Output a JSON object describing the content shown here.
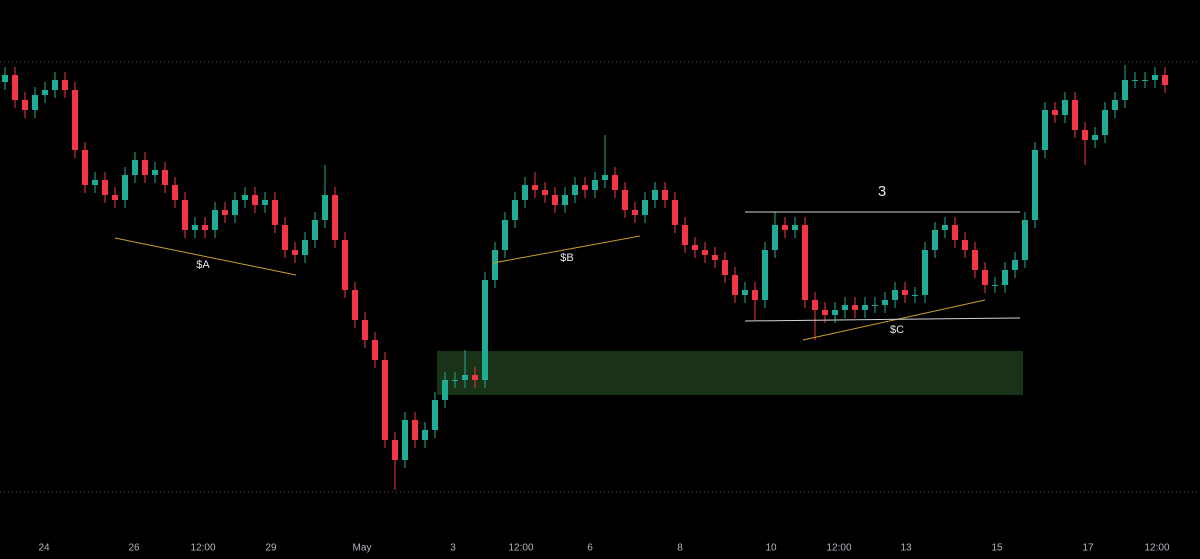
{
  "chart_data": {
    "type": "candlestick",
    "up_color": "#22ab94",
    "down_color": "#f23645",
    "x": [
      0,
      1,
      2,
      3,
      4,
      5,
      6,
      7,
      8,
      9,
      10,
      11,
      12,
      13,
      14,
      15,
      16,
      17,
      18,
      19,
      20,
      21,
      22,
      23,
      24,
      25,
      26,
      27,
      28,
      29,
      30,
      31,
      32,
      33,
      34,
      35,
      36,
      37,
      38,
      39,
      40,
      41,
      42,
      43,
      44,
      45,
      46,
      47,
      48,
      49,
      50,
      51,
      52,
      53,
      54,
      55,
      56,
      57,
      58,
      59,
      60,
      61,
      62,
      63,
      64,
      65,
      66,
      67,
      68,
      69,
      70,
      71,
      72,
      73,
      74,
      75,
      76,
      77,
      78,
      79,
      80,
      81,
      82,
      83,
      84,
      85,
      86,
      87,
      88,
      89,
      90,
      91,
      92,
      93,
      94,
      95,
      96,
      97,
      98,
      99,
      100,
      101,
      102,
      103,
      104,
      105,
      106,
      107,
      108,
      109,
      110,
      111,
      112,
      113,
      114,
      115,
      116
    ],
    "open": [
      410,
      417,
      392,
      382,
      397,
      402,
      412,
      402,
      342,
      307,
      312,
      297,
      292,
      317,
      332,
      317,
      322,
      307,
      292,
      262,
      267,
      262,
      282,
      277,
      292,
      297,
      287,
      292,
      267,
      242,
      237,
      252,
      272,
      297,
      252,
      202,
      172,
      152,
      132,
      52,
      32,
      72,
      52,
      62,
      92,
      112,
      112,
      117,
      112,
      212,
      242,
      272,
      292,
      307,
      302,
      297,
      287,
      297,
      307,
      302,
      312,
      317,
      302,
      282,
      277,
      292,
      302,
      292,
      267,
      247,
      242,
      237,
      232,
      217,
      197,
      202,
      192,
      242,
      267,
      262,
      267,
      192,
      182,
      177,
      182,
      187,
      182,
      187,
      187,
      192,
      202,
      197,
      197,
      242,
      262,
      267,
      252,
      242,
      222,
      207,
      207,
      222,
      232,
      272,
      342,
      382,
      377,
      392,
      362,
      352,
      357,
      382,
      392,
      412,
      412,
      412,
      417
    ],
    "high": [
      425,
      425,
      400,
      405,
      410,
      420,
      420,
      410,
      350,
      320,
      320,
      305,
      325,
      340,
      340,
      330,
      330,
      315,
      300,
      275,
      275,
      290,
      290,
      300,
      305,
      305,
      300,
      300,
      275,
      250,
      260,
      280,
      327,
      305,
      260,
      210,
      180,
      160,
      140,
      60,
      80,
      80,
      70,
      100,
      120,
      120,
      142,
      125,
      220,
      250,
      280,
      300,
      315,
      320,
      310,
      305,
      305,
      315,
      315,
      320,
      357,
      325,
      310,
      290,
      300,
      310,
      310,
      300,
      275,
      255,
      250,
      245,
      240,
      225,
      210,
      210,
      250,
      280,
      275,
      275,
      275,
      200,
      190,
      190,
      195,
      195,
      195,
      195,
      200,
      210,
      210,
      205,
      250,
      270,
      275,
      275,
      260,
      250,
      230,
      215,
      230,
      240,
      280,
      350,
      390,
      390,
      400,
      400,
      370,
      365,
      390,
      400,
      427,
      420,
      420,
      425,
      425
    ],
    "low": [
      402,
      384,
      374,
      374,
      389,
      394,
      394,
      334,
      299,
      299,
      289,
      284,
      284,
      309,
      309,
      309,
      299,
      284,
      254,
      254,
      254,
      254,
      269,
      269,
      284,
      279,
      279,
      259,
      234,
      229,
      229,
      244,
      264,
      244,
      194,
      164,
      144,
      124,
      44,
      2,
      24,
      44,
      44,
      54,
      84,
      104,
      104,
      104,
      104,
      204,
      234,
      264,
      284,
      294,
      289,
      279,
      279,
      289,
      294,
      294,
      304,
      294,
      274,
      269,
      269,
      284,
      284,
      259,
      239,
      234,
      229,
      224,
      209,
      189,
      189,
      172,
      184,
      234,
      254,
      254,
      184,
      152,
      169,
      169,
      174,
      174,
      174,
      179,
      179,
      184,
      189,
      189,
      189,
      234,
      254,
      244,
      234,
      214,
      199,
      199,
      199,
      214,
      224,
      264,
      334,
      369,
      369,
      354,
      327,
      344,
      349,
      374,
      384,
      404,
      404,
      404,
      399
    ],
    "close": [
      417,
      392,
      382,
      397,
      402,
      412,
      402,
      342,
      307,
      312,
      297,
      292,
      317,
      332,
      317,
      322,
      307,
      292,
      262,
      267,
      262,
      282,
      277,
      292,
      297,
      287,
      292,
      267,
      242,
      237,
      252,
      272,
      297,
      252,
      202,
      172,
      152,
      132,
      52,
      32,
      72,
      52,
      62,
      92,
      112,
      112,
      117,
      112,
      212,
      242,
      272,
      292,
      307,
      302,
      297,
      287,
      297,
      307,
      302,
      312,
      317,
      302,
      282,
      277,
      292,
      302,
      292,
      267,
      247,
      242,
      237,
      232,
      217,
      197,
      202,
      192,
      242,
      267,
      262,
      267,
      192,
      182,
      177,
      182,
      187,
      182,
      187,
      187,
      192,
      202,
      197,
      197,
      242,
      262,
      267,
      252,
      242,
      222,
      207,
      207,
      222,
      232,
      272,
      342,
      382,
      377,
      392,
      362,
      352,
      357,
      382,
      392,
      412,
      412,
      412,
      417,
      407
    ],
    "xlim": [
      -0.5,
      116.5
    ],
    "ylim": [
      0,
      430
    ],
    "xticks": [
      {
        "value": 3.9,
        "label": "24"
      },
      {
        "value": 12.9,
        "label": "26"
      },
      {
        "value": 19.8,
        "label": "12:00"
      },
      {
        "value": 26.6,
        "label": "29"
      },
      {
        "value": 35.7,
        "label": "May"
      },
      {
        "value": 44.8,
        "label": "3"
      },
      {
        "value": 51.6,
        "label": "12:00"
      },
      {
        "value": 58.5,
        "label": "6"
      },
      {
        "value": 67.5,
        "label": "8"
      },
      {
        "value": 76.6,
        "label": "10"
      },
      {
        "value": 83.4,
        "label": "12:00"
      },
      {
        "value": 90.1,
        "label": "13"
      },
      {
        "value": 99.2,
        "label": "15"
      },
      {
        "value": 108.3,
        "label": "17"
      },
      {
        "value": 115.2,
        "label": "12:00"
      }
    ],
    "zones": [
      {
        "x": [
          43.2,
          101.8
        ],
        "y": [
          97,
          141
        ],
        "color": "#1a3318"
      }
    ],
    "lines": [
      {
        "x": [
          11,
          29.1
        ],
        "y": [
          254,
          217
        ],
        "color": "#c9a227"
      },
      {
        "x": [
          48.8,
          63.5
        ],
        "y": [
          229,
          256
        ],
        "color": "#c9a227"
      },
      {
        "x": [
          79.8,
          98
        ],
        "y": [
          152,
          192
        ],
        "color": "#c9a227"
      },
      {
        "x": [
          74,
          101.5
        ],
        "y": [
          280,
          280
        ],
        "color": "#d1d4dc"
      },
      {
        "x": [
          74,
          101.5
        ],
        "y": [
          171,
          174
        ],
        "color": "#d1d4dc"
      }
    ],
    "annotations": [
      {
        "text": "$A",
        "x": 19.8,
        "y": 227
      },
      {
        "text": "$B",
        "x": 56.2,
        "y": 234
      },
      {
        "text": "$C",
        "x": 89.2,
        "y": 162
      },
      {
        "text": "3",
        "x": 87.7,
        "y": 300
      }
    ]
  }
}
